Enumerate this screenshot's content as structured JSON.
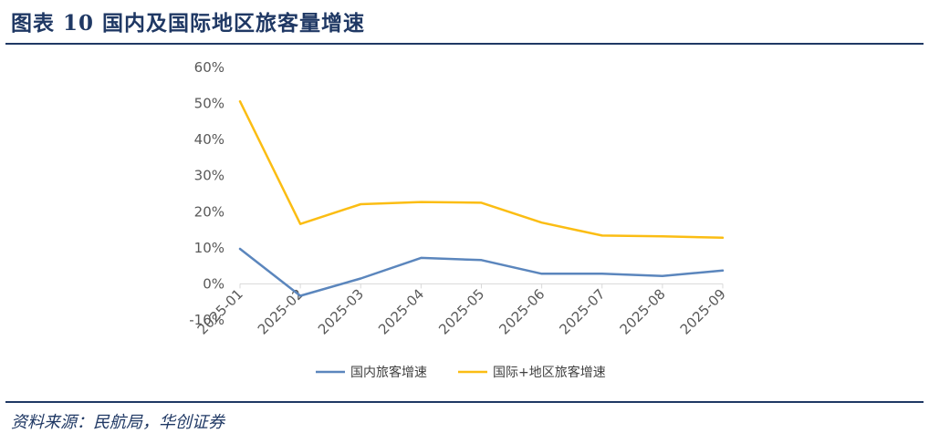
{
  "header": {
    "title": "图表 10    国内及国际地区旅客量增速"
  },
  "footer": {
    "source": "资料来源：民航局，华创证券"
  },
  "colors": {
    "domestic": "#5b86bd",
    "international": "#fbbd13",
    "rule": "#1f3864"
  },
  "chart_data": {
    "type": "line",
    "title": "",
    "xlabel": "",
    "ylabel": "",
    "ylim": [
      -0.1,
      0.6
    ],
    "yticks": [
      "60%",
      "50%",
      "40%",
      "30%",
      "20%",
      "10%",
      "0%",
      "-10%"
    ],
    "ytick_values": [
      0.6,
      0.5,
      0.4,
      0.3,
      0.2,
      0.1,
      0.0,
      -0.1
    ],
    "grid": false,
    "legend_position": "bottom",
    "categories": [
      "2025-01",
      "2025-02",
      "2025-03",
      "2025-04",
      "2025-05",
      "2025-06",
      "2025-07",
      "2025-08",
      "2025-09"
    ],
    "series": [
      {
        "name": "国内旅客增速",
        "color": "#5b86bd",
        "values": [
          0.097,
          -0.033,
          0.015,
          0.072,
          0.066,
          0.028,
          0.028,
          0.022,
          0.037
        ]
      },
      {
        "name": "国际+地区旅客增速",
        "color": "#fbbd13",
        "values": [
          0.506,
          0.166,
          0.221,
          0.227,
          0.225,
          0.17,
          0.134,
          0.132,
          0.128
        ]
      }
    ]
  }
}
